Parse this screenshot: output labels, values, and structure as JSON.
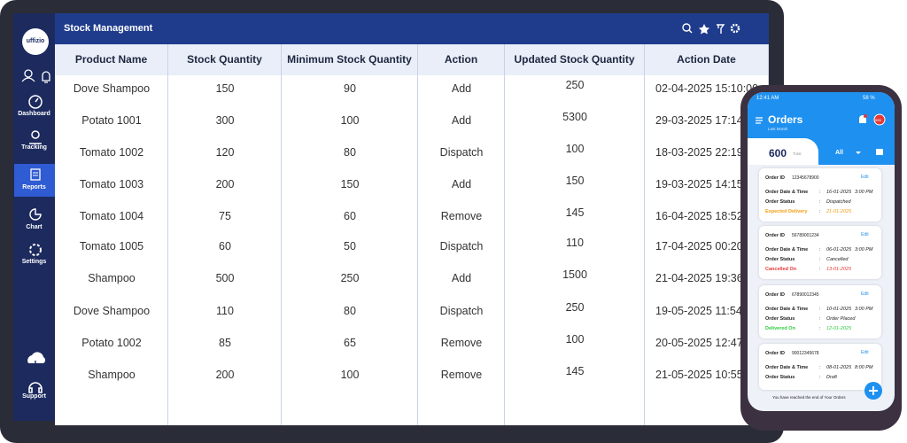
{
  "sidebar": {
    "logo": "uffizio",
    "items": [
      "Dashboard",
      "Tracking",
      "Reports",
      "Chart",
      "Settings"
    ],
    "support": "Support"
  },
  "header": {
    "title": "Stock Management"
  },
  "table": {
    "columns": [
      "Product Name",
      "Stock Quantity",
      "Minimum Stock Quantity",
      "Action",
      "Updated Stock Quantity",
      "Action Date"
    ],
    "rows": [
      [
        "Dove Shampoo",
        "150",
        "90",
        "Add",
        "250",
        "02-04-2025 15:10:00"
      ],
      [
        "Potato 1001",
        "300",
        "100",
        "Add",
        "5300",
        "29-03-2025 17:14"
      ],
      [
        "Tomato 1002",
        "120",
        "80",
        "Dispatch",
        "100",
        "18-03-2025 22:19"
      ],
      [
        "Tomato 1003",
        "200",
        "150",
        "Add",
        "150",
        "19-03-2025 14:15"
      ],
      [
        "Tomato 1004",
        "75",
        "60",
        "Remove",
        "145",
        "16-04-2025 18:52"
      ],
      [
        "Tomato 1005",
        "60",
        "50",
        "Dispatch",
        "110",
        "17-04-2025 00:20"
      ],
      [
        "Shampoo",
        "500",
        "250",
        "Add",
        "1500",
        "21-04-2025 19:36"
      ],
      [
        "Dove Shampoo",
        "110",
        "80",
        "Dispatch",
        "250",
        "19-05-2025 11:54"
      ],
      [
        "Potato 1002",
        "85",
        "65",
        "Remove",
        "100",
        "20-05-2025 12:47"
      ],
      [
        "Shampoo",
        "200",
        "100",
        "Remove",
        "145",
        "21-05-2025 10:55"
      ]
    ]
  },
  "phone": {
    "time": "12:41 AM",
    "battery": "58 %",
    "title": "Orders",
    "subtitle": "Last Month",
    "badge": "555",
    "total": "600",
    "total_label": "Total",
    "filter": "All",
    "separator": ":",
    "edit": "Edit",
    "labels": {
      "order_id": "Order ID",
      "date_time": "Order Date & Time",
      "status": "Order Status"
    },
    "orders": [
      {
        "id": "12345678900",
        "date": "16-01-2025",
        "time": "3:00 PM",
        "status": "Dispatched",
        "extra_label": "Expected Delivery",
        "extra_value": "21-01-2025",
        "extra_color": "#f39c12"
      },
      {
        "id": "56789001234",
        "date": "06-01-2025",
        "time": "3:00 PM",
        "status": "Cancelled",
        "extra_label": "Cancelled On",
        "extra_value": "13-01-2025",
        "extra_color": "#e53935"
      },
      {
        "id": "67890012345",
        "date": "10-01-2025",
        "time": "3:00 PM",
        "status": "Order Placed",
        "extra_label": "Delivered On",
        "extra_value": "12-01-2025",
        "extra_color": "#2ecc40"
      },
      {
        "id": "90012345678",
        "date": "08-01-2025",
        "time": "8:00 PM",
        "status": "Draft"
      }
    ],
    "footer": "You have reached the end of Your Orders"
  }
}
